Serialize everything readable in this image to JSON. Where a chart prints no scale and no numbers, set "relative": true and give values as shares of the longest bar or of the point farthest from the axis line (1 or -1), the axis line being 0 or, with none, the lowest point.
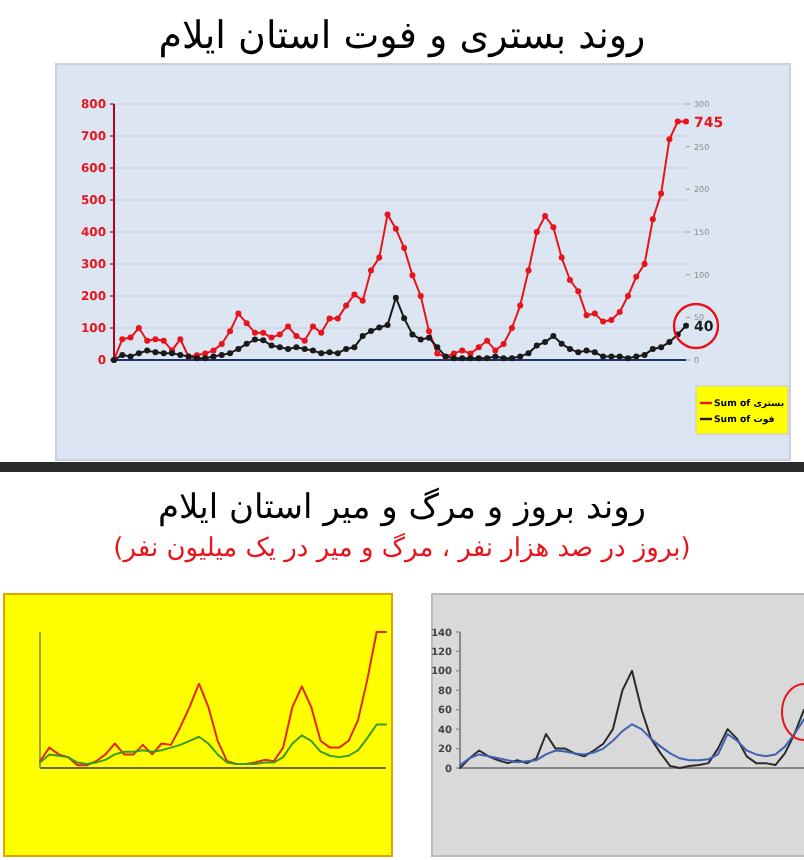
{
  "chart_data": [
    {
      "type": "line",
      "title": "روند بستری و فوت استان ایلام",
      "categories": [
        null,
        null,
        null,
        null,
        null,
        null,
        null,
        null,
        null,
        null,
        null,
        null,
        null,
        null,
        null,
        null,
        null,
        null,
        null,
        null,
        null,
        null,
        null,
        null,
        null,
        null,
        null,
        null,
        null,
        null,
        null,
        null,
        null,
        null,
        null,
        null,
        null,
        null,
        null,
        null,
        null,
        null,
        null,
        null,
        null,
        null,
        null,
        null,
        null,
        null,
        null,
        null,
        null,
        null,
        null,
        null,
        null,
        null,
        null,
        null,
        null,
        null,
        null,
        null,
        null,
        null,
        null,
        null,
        null,
        null
      ],
      "series": [
        {
          "name": "Sum of بستری",
          "color": "#e8141b",
          "values": [
            0,
            65,
            70,
            100,
            60,
            65,
            60,
            30,
            65,
            10,
            15,
            20,
            30,
            50,
            90,
            145,
            115,
            85,
            85,
            70,
            80,
            105,
            75,
            60,
            105,
            85,
            130,
            130,
            170,
            205,
            185,
            280,
            320,
            455,
            410,
            350,
            265,
            200,
            90,
            20,
            10,
            20,
            30,
            20,
            40,
            60,
            30,
            50,
            100,
            170,
            280,
            400,
            450,
            415,
            320,
            250,
            215,
            140,
            145,
            120,
            125,
            150,
            200,
            260,
            300,
            440,
            520,
            690,
            745,
            745
          ],
          "value_labels": [
            null,
            null,
            null,
            null,
            null,
            null,
            null,
            null,
            null,
            null,
            null,
            null,
            null,
            null,
            null,
            null,
            null,
            null,
            null,
            null,
            null,
            null,
            null,
            null,
            null,
            null,
            null,
            null,
            null,
            null,
            null,
            null,
            null,
            null,
            null,
            null,
            null,
            null,
            null,
            null,
            null,
            null,
            null,
            null,
            null,
            null,
            null,
            null,
            null,
            null,
            null,
            null,
            null,
            null,
            null,
            null,
            null,
            null,
            null,
            null,
            null,
            null,
            null,
            null,
            null,
            null,
            null,
            null,
            null,
            "745"
          ]
        },
        {
          "name": "Sum of فوت",
          "color": "#1a1a1a",
          "axis": "y2",
          "values": [
            0,
            6,
            4,
            8,
            11,
            9,
            8,
            8,
            6,
            4,
            2,
            2,
            4,
            6,
            8,
            13,
            19,
            24,
            23,
            17,
            15,
            13,
            15,
            13,
            11,
            8,
            9,
            8,
            13,
            15,
            28,
            34,
            38,
            41,
            73,
            49,
            30,
            24,
            26,
            15,
            4,
            2,
            2,
            2,
            2,
            2,
            4,
            2,
            2,
            4,
            8,
            17,
            21,
            28,
            19,
            13,
            9,
            11,
            9,
            4,
            4,
            4,
            2,
            4,
            6,
            13,
            15,
            21,
            30,
            40
          ],
          "value_labels": [
            null,
            null,
            null,
            null,
            null,
            null,
            null,
            null,
            null,
            null,
            null,
            null,
            null,
            null,
            null,
            null,
            null,
            null,
            null,
            null,
            null,
            null,
            null,
            null,
            null,
            null,
            null,
            null,
            null,
            null,
            null,
            null,
            null,
            null,
            null,
            null,
            null,
            null,
            null,
            null,
            null,
            null,
            null,
            null,
            null,
            null,
            null,
            null,
            null,
            null,
            null,
            null,
            null,
            null,
            null,
            null,
            null,
            null,
            null,
            null,
            null,
            null,
            null,
            null,
            null,
            null,
            null,
            null,
            null,
            "40"
          ]
        }
      ],
      "ylim": [
        0,
        800
      ],
      "yticks": [
        0,
        100,
        200,
        300,
        400,
        500,
        600,
        700,
        800
      ],
      "y2lim": [
        0,
        300
      ],
      "y2ticks": [
        0,
        50,
        100,
        150,
        200,
        250,
        300
      ],
      "grid": "y",
      "legend": "bottom right",
      "marker": "circle"
    },
    {
      "type": "line",
      "title": "روند بروز و مرگ و میر استان ایلام",
      "subtitle": "(بروز در صد هزار نفر ، مرگ و میر در یک میلیون نفر)",
      "relative": true,
      "categories": [
        null,
        null,
        null,
        null,
        null,
        null,
        null,
        null,
        null,
        null,
        null,
        null,
        null,
        null,
        null,
        null,
        null,
        null,
        null,
        null,
        null,
        null,
        null,
        null,
        null,
        null,
        null,
        null,
        null,
        null,
        null,
        null,
        null,
        null,
        null,
        null,
        null,
        null
      ],
      "series": [
        {
          "color": "#e3260e",
          "values": [
            0.05,
            0.15,
            0.1,
            0.08,
            0.02,
            0.02,
            0.05,
            0.1,
            0.18,
            0.1,
            0.1,
            0.17,
            0.1,
            0.18,
            0.17,
            0.3,
            0.45,
            0.62,
            0.45,
            0.2,
            0.05,
            0.03,
            0.03,
            0.04,
            0.06,
            0.05,
            0.15,
            0.45,
            0.6,
            0.45,
            0.2,
            0.15,
            0.15,
            0.2,
            0.35,
            0.65,
            1.0,
            1.0
          ]
        },
        {
          "color": "#3a9a28",
          "values": [
            0.04,
            0.1,
            0.09,
            0.08,
            0.04,
            0.03,
            0.04,
            0.06,
            0.1,
            0.12,
            0.12,
            0.13,
            0.12,
            0.13,
            0.15,
            0.17,
            0.2,
            0.23,
            0.18,
            0.1,
            0.04,
            0.03,
            0.03,
            0.03,
            0.04,
            0.04,
            0.08,
            0.18,
            0.24,
            0.2,
            0.12,
            0.09,
            0.08,
            0.09,
            0.13,
            0.22,
            0.32,
            0.32
          ]
        }
      ]
    },
    {
      "type": "line",
      "categories": [
        null,
        null,
        null,
        null,
        null,
        null,
        null,
        null,
        null,
        null,
        null,
        null,
        null,
        null,
        null,
        null,
        null,
        null,
        null,
        null,
        null,
        null,
        null,
        null,
        null,
        null,
        null,
        null,
        null,
        null,
        null,
        null,
        null,
        null,
        null,
        null,
        null
      ],
      "series": [
        {
          "color": "#2b2b2b",
          "values": [
            0,
            10,
            18,
            12,
            8,
            5,
            8,
            5,
            10,
            35,
            20,
            20,
            15,
            12,
            18,
            25,
            40,
            80,
            100,
            60,
            30,
            15,
            2,
            0,
            2,
            3,
            5,
            20,
            40,
            30,
            12,
            5,
            5,
            3,
            15,
            35,
            60
          ]
        },
        {
          "color": "#3f62b5",
          "values": [
            3,
            10,
            14,
            12,
            10,
            8,
            6,
            7,
            8,
            14,
            18,
            17,
            15,
            14,
            16,
            20,
            28,
            38,
            45,
            40,
            30,
            22,
            15,
            10,
            8,
            8,
            9,
            14,
            35,
            28,
            18,
            14,
            12,
            14,
            22,
            35,
            50
          ]
        }
      ],
      "ylim": [
        0,
        140
      ],
      "yticks": [
        0,
        20,
        40,
        60,
        80,
        100,
        120,
        140
      ]
    }
  ]
}
